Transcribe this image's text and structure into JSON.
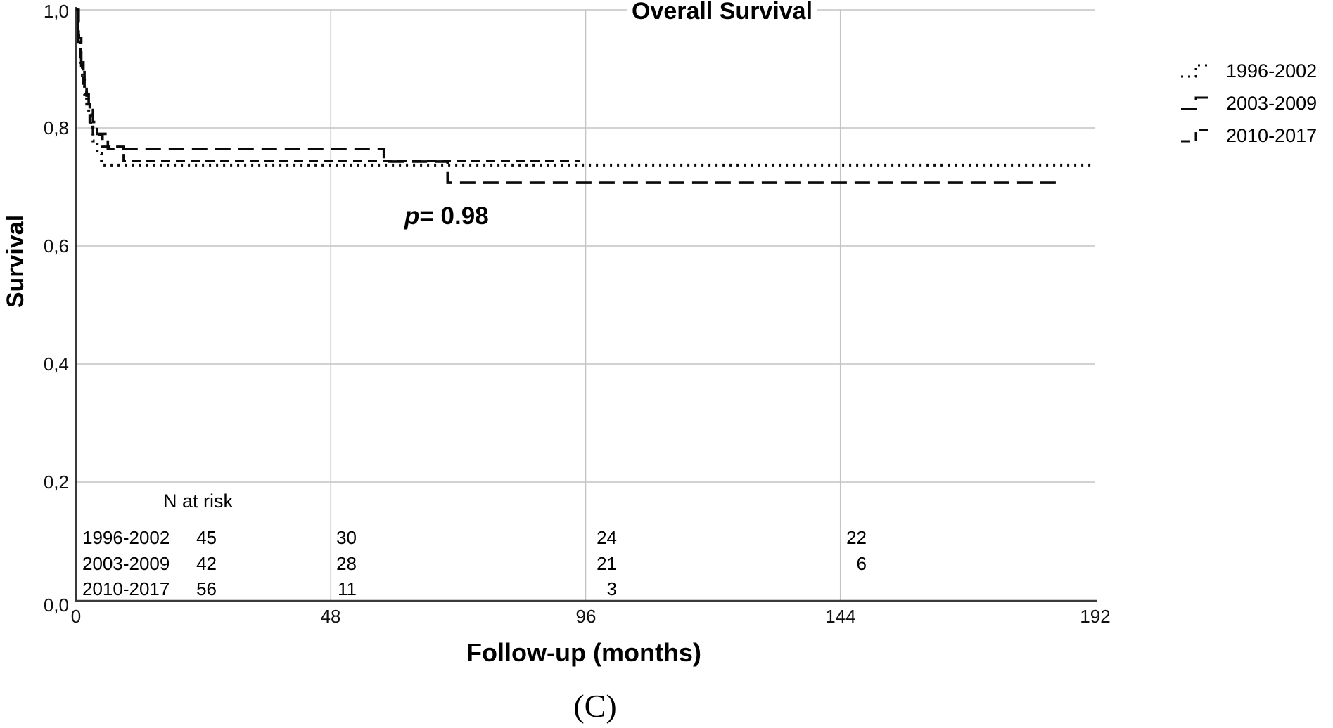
{
  "title": "Overall Survival",
  "panel_label": "(C)",
  "annotation": {
    "p_italic": "p",
    "p_rest": "= 0.98"
  },
  "axes": {
    "x_label": "Follow-up (months)",
    "y_label": "Survival",
    "x_tick_labels": [
      "0",
      "48",
      "96",
      "144",
      "192"
    ],
    "y_tick_labels": [
      "1,0",
      "0,8",
      "0,6",
      "0,4",
      "0,2",
      "0,0"
    ]
  },
  "legend": [
    {
      "label": "1996-2002",
      "style": "dotted"
    },
    {
      "label": "2003-2009",
      "style": "long-dash"
    },
    {
      "label": "2010-2017",
      "style": "dash"
    }
  ],
  "n_at_risk": {
    "header": "N at risk",
    "rows": [
      {
        "label": "1996-2002",
        "values": [
          "45",
          "30",
          "24",
          "22"
        ]
      },
      {
        "label": "2003-2009",
        "values": [
          "42",
          "28",
          "21",
          "6"
        ]
      },
      {
        "label": "2010-2017",
        "values": [
          "56",
          "11",
          "3",
          ""
        ]
      }
    ]
  },
  "colors": {
    "line": "#0a0a0a",
    "grid": "#c4c4c4",
    "axis": "#3a3a3a"
  },
  "chart_data": {
    "type": "line",
    "subtype": "kaplan-meier-step",
    "title": "Overall Survival",
    "xlabel": "Follow-up (months)",
    "ylabel": "Survival",
    "xlim": [
      0,
      192
    ],
    "ylim": [
      0.0,
      1.0
    ],
    "x_ticks": [
      0,
      48,
      96,
      144,
      192
    ],
    "y_ticks": [
      1.0,
      0.8,
      0.6,
      0.4,
      0.2,
      0.0
    ],
    "grid": true,
    "legend_position": "right",
    "annotation": "p= 0.98",
    "series": [
      {
        "name": "1996-2002",
        "style": "dotted",
        "steps": [
          [
            0,
            1.0
          ],
          [
            0.4,
            0.956
          ],
          [
            0.8,
            0.911
          ],
          [
            1.2,
            0.889
          ],
          [
            1.6,
            0.867
          ],
          [
            2,
            0.844
          ],
          [
            2.4,
            0.822
          ],
          [
            2.8,
            0.8
          ],
          [
            3.2,
            0.778
          ],
          [
            4,
            0.756
          ],
          [
            4.8,
            0.737
          ],
          [
            192,
            0.737
          ]
        ]
      },
      {
        "name": "2003-2009",
        "style": "long-dash",
        "steps": [
          [
            0,
            1.0
          ],
          [
            0.5,
            0.952
          ],
          [
            1,
            0.905
          ],
          [
            1.6,
            0.857
          ],
          [
            2.4,
            0.833
          ],
          [
            3.2,
            0.81
          ],
          [
            4,
            0.79
          ],
          [
            6,
            0.764
          ],
          [
            58,
            0.743
          ],
          [
            70,
            0.707
          ],
          [
            185,
            0.707
          ]
        ]
      },
      {
        "name": "2010-2017",
        "style": "dash",
        "steps": [
          [
            0,
            1.0
          ],
          [
            0.4,
            0.946
          ],
          [
            0.9,
            0.911
          ],
          [
            1.4,
            0.875
          ],
          [
            2,
            0.84
          ],
          [
            2.6,
            0.806
          ],
          [
            3.2,
            0.788
          ],
          [
            5,
            0.768
          ],
          [
            9,
            0.744
          ],
          [
            95,
            0.744
          ]
        ]
      }
    ]
  }
}
